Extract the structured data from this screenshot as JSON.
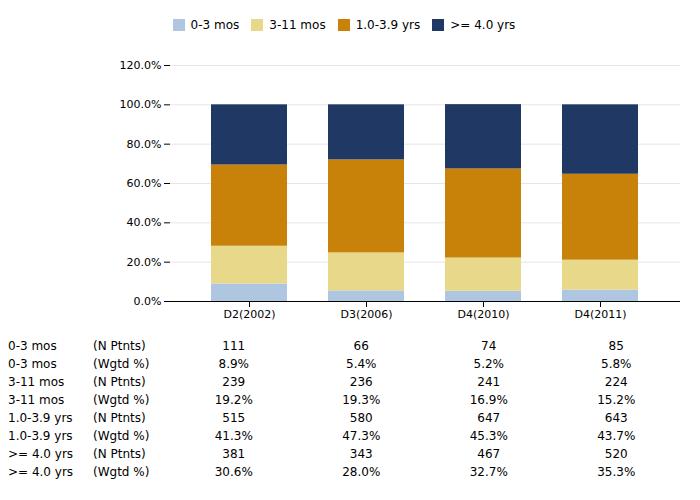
{
  "chart_data": {
    "type": "bar",
    "stacked": true,
    "categories": [
      "D2(2002)",
      "D3(2006)",
      "D4(2010)",
      "D4(2011)"
    ],
    "series": [
      {
        "name": "0-3 mos",
        "color": "#aec6e0",
        "values": [
          8.9,
          5.4,
          5.2,
          5.8
        ]
      },
      {
        "name": "3-11 mos",
        "color": "#e8d88a",
        "values": [
          19.2,
          19.3,
          16.9,
          15.2
        ]
      },
      {
        "name": "1.0-3.9 yrs",
        "color": "#c8820a",
        "values": [
          41.3,
          47.3,
          45.3,
          43.7
        ]
      },
      {
        "name": ">= 4.0 yrs",
        "color": "#1f3864",
        "values": [
          30.6,
          28.0,
          32.7,
          35.3
        ]
      }
    ],
    "ylim": [
      0,
      120
    ],
    "yticks": [
      {
        "value": 0,
        "label": "0.0%"
      },
      {
        "value": 20,
        "label": "20.0%"
      },
      {
        "value": 40,
        "label": "40.0%"
      },
      {
        "value": 60,
        "label": "60.0%"
      },
      {
        "value": 80,
        "label": "80.0%"
      },
      {
        "value": 100,
        "label": "100.0%"
      },
      {
        "value": 120,
        "label": "120.0%"
      }
    ],
    "grid": true,
    "legend": "top",
    "table": [
      [
        "0-3 mos",
        "(N Ptnts)",
        "111",
        "66",
        "74",
        "85"
      ],
      [
        "0-3 mos",
        "(Wgtd %)",
        "8.9%",
        "5.4%",
        "5.2%",
        "5.8%"
      ],
      [
        "3-11 mos",
        "(N Ptnts)",
        "239",
        "236",
        "241",
        "224"
      ],
      [
        "3-11 mos",
        "(Wgtd %)",
        "19.2%",
        "19.3%",
        "16.9%",
        "15.2%"
      ],
      [
        "1.0-3.9 yrs",
        "(N Ptnts)",
        "515",
        "580",
        "647",
        "643"
      ],
      [
        "1.0-3.9 yrs",
        "(Wgtd %)",
        "41.3%",
        "47.3%",
        "45.3%",
        "43.7%"
      ],
      [
        ">= 4.0 yrs",
        "(N Ptnts)",
        "381",
        "343",
        "467",
        "520"
      ],
      [
        ">= 4.0 yrs",
        "(Wgtd %)",
        "30.6%",
        "28.0%",
        "32.7%",
        "35.3%"
      ]
    ]
  }
}
